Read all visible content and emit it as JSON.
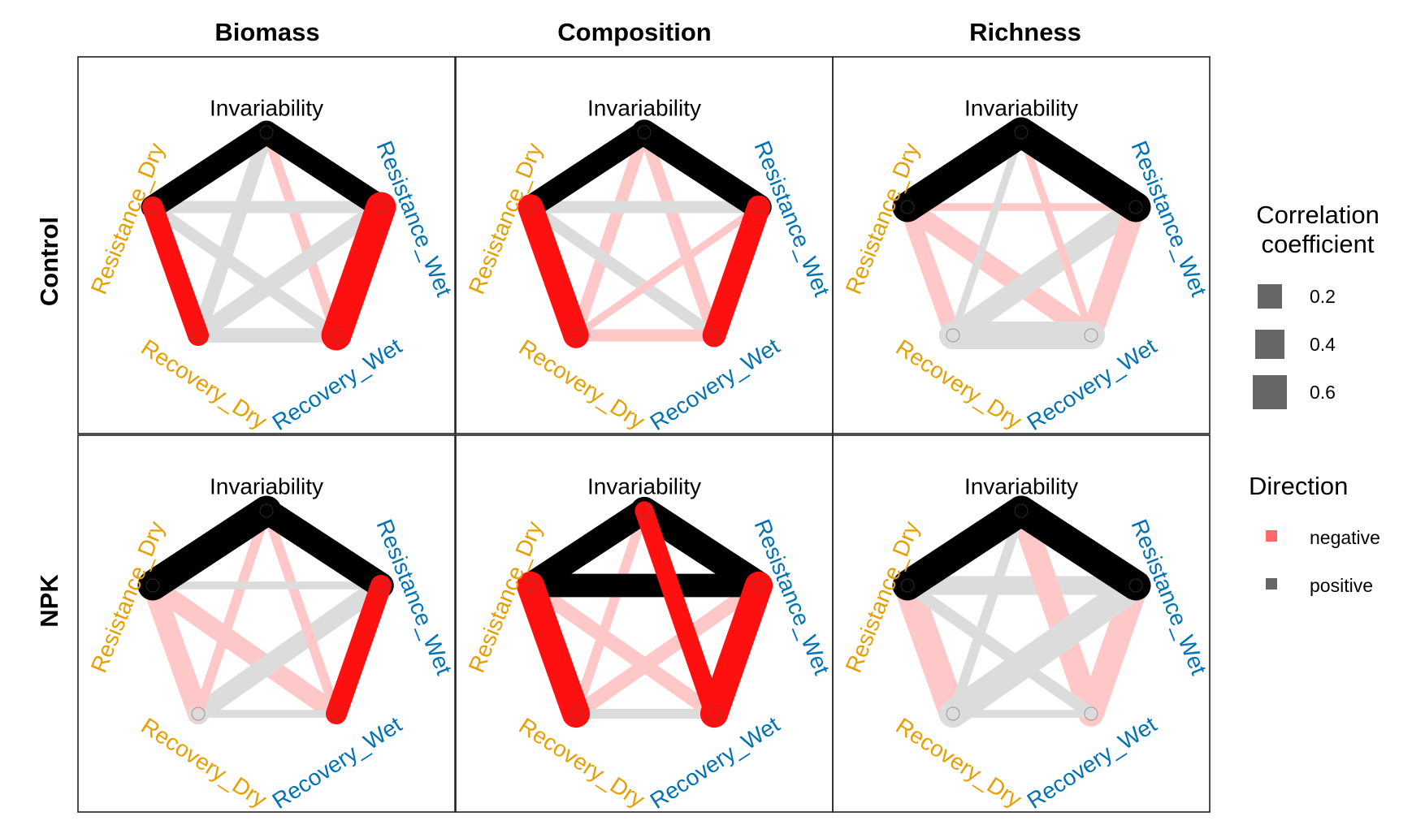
{
  "column_headers": [
    "Biomass",
    "Composition",
    "Richness"
  ],
  "row_headers": [
    "Control",
    "NPK"
  ],
  "nodes": [
    {
      "label": "Invariability",
      "color": "#000000"
    },
    {
      "label": "Resistance_Wet",
      "color": "#0072B2"
    },
    {
      "label": "Recovery_Wet",
      "color": "#0072B2"
    },
    {
      "label": "Recovery_Dry",
      "color": "#E69F00"
    },
    {
      "label": "Resistance_Dry",
      "color": "#E69F00"
    }
  ],
  "legend": {
    "size_title_line1": "Correlation",
    "size_title_line2": "coefficient",
    "size_items": [
      "0.2",
      "0.4",
      "0.6"
    ],
    "direction_title": "Direction",
    "direction_items": [
      {
        "label": "negative",
        "color": "#FF6B6B"
      },
      {
        "label": "positive",
        "color": "#666666"
      }
    ]
  },
  "colors": {
    "negative": "#FF1010",
    "positive": "#000000",
    "faint_negative": "#FFC8C8",
    "faint_positive": "#DCDCDC"
  },
  "chart_data": {
    "type": "correlation_network",
    "nodes": [
      "Invariability",
      "Resistance_Wet",
      "Recovery_Wet",
      "Recovery_Dry",
      "Resistance_Dry"
    ],
    "panels": [
      {
        "row": "Control",
        "column": "Biomass",
        "edges": [
          {
            "from": "Invariability",
            "to": "Resistance_Dry",
            "direction": "positive",
            "r": 0.45,
            "significant": true
          },
          {
            "from": "Invariability",
            "to": "Resistance_Wet",
            "direction": "positive",
            "r": 0.45,
            "significant": true
          },
          {
            "from": "Resistance_Dry",
            "to": "Recovery_Dry",
            "direction": "negative",
            "r": 0.4,
            "significant": true
          },
          {
            "from": "Resistance_Wet",
            "to": "Recovery_Wet",
            "direction": "negative",
            "r": 0.6,
            "significant": true
          },
          {
            "from": "Invariability",
            "to": "Recovery_Dry",
            "direction": "positive",
            "r": 0.25,
            "significant": false
          },
          {
            "from": "Invariability",
            "to": "Recovery_Wet",
            "direction": "negative",
            "r": 0.15,
            "significant": false
          },
          {
            "from": "Resistance_Dry",
            "to": "Resistance_Wet",
            "direction": "positive",
            "r": 0.2,
            "significant": false
          },
          {
            "from": "Resistance_Dry",
            "to": "Recovery_Wet",
            "direction": "positive",
            "r": 0.2,
            "significant": false
          },
          {
            "from": "Resistance_Wet",
            "to": "Recovery_Dry",
            "direction": "positive",
            "r": 0.3,
            "significant": false
          },
          {
            "from": "Recovery_Dry",
            "to": "Recovery_Wet",
            "direction": "positive",
            "r": 0.25,
            "significant": false
          }
        ]
      },
      {
        "row": "Control",
        "column": "Composition",
        "edges": [
          {
            "from": "Invariability",
            "to": "Resistance_Dry",
            "direction": "positive",
            "r": 0.45,
            "significant": true
          },
          {
            "from": "Invariability",
            "to": "Resistance_Wet",
            "direction": "positive",
            "r": 0.5,
            "significant": true
          },
          {
            "from": "Resistance_Dry",
            "to": "Recovery_Dry",
            "direction": "negative",
            "r": 0.5,
            "significant": true
          },
          {
            "from": "Resistance_Wet",
            "to": "Recovery_Wet",
            "direction": "negative",
            "r": 0.45,
            "significant": true
          },
          {
            "from": "Invariability",
            "to": "Recovery_Dry",
            "direction": "negative",
            "r": 0.2,
            "significant": false
          },
          {
            "from": "Invariability",
            "to": "Recovery_Wet",
            "direction": "negative",
            "r": 0.2,
            "significant": false
          },
          {
            "from": "Resistance_Dry",
            "to": "Resistance_Wet",
            "direction": "positive",
            "r": 0.2,
            "significant": false
          },
          {
            "from": "Resistance_Dry",
            "to": "Recovery_Wet",
            "direction": "positive",
            "r": 0.2,
            "significant": false
          },
          {
            "from": "Resistance_Wet",
            "to": "Recovery_Dry",
            "direction": "negative",
            "r": 0.1,
            "significant": false
          },
          {
            "from": "Recovery_Dry",
            "to": "Recovery_Wet",
            "direction": "negative",
            "r": 0.2,
            "significant": false
          }
        ]
      },
      {
        "row": "Control",
        "column": "Richness",
        "edges": [
          {
            "from": "Invariability",
            "to": "Resistance_Dry",
            "direction": "positive",
            "r": 0.6,
            "significant": true
          },
          {
            "from": "Invariability",
            "to": "Resistance_Wet",
            "direction": "positive",
            "r": 0.6,
            "significant": true
          },
          {
            "from": "Resistance_Dry",
            "to": "Resistance_Wet",
            "direction": "negative",
            "r": 0.1,
            "significant": false
          },
          {
            "from": "Resistance_Dry",
            "to": "Recovery_Dry",
            "direction": "negative",
            "r": 0.3,
            "significant": false
          },
          {
            "from": "Resistance_Dry",
            "to": "Recovery_Wet",
            "direction": "negative",
            "r": 0.35,
            "significant": false
          },
          {
            "from": "Resistance_Wet",
            "to": "Recovery_Dry",
            "direction": "positive",
            "r": 0.4,
            "significant": false
          },
          {
            "from": "Resistance_Wet",
            "to": "Recovery_Wet",
            "direction": "negative",
            "r": 0.4,
            "significant": false
          },
          {
            "from": "Invariability",
            "to": "Recovery_Dry",
            "direction": "positive",
            "r": 0.1,
            "significant": false
          },
          {
            "from": "Invariability",
            "to": "Recovery_Wet",
            "direction": "negative",
            "r": 0.1,
            "significant": false
          },
          {
            "from": "Recovery_Dry",
            "to": "Recovery_Wet",
            "direction": "positive",
            "r": 0.55,
            "significant": false
          }
        ]
      },
      {
        "row": "NPK",
        "column": "Biomass",
        "edges": [
          {
            "from": "Invariability",
            "to": "Resistance_Dry",
            "direction": "positive",
            "r": 0.6,
            "significant": true
          },
          {
            "from": "Invariability",
            "to": "Resistance_Wet",
            "direction": "positive",
            "r": 0.5,
            "significant": true
          },
          {
            "from": "Resistance_Wet",
            "to": "Recovery_Wet",
            "direction": "negative",
            "r": 0.4,
            "significant": true
          },
          {
            "from": "Resistance_Dry",
            "to": "Recovery_Dry",
            "direction": "negative",
            "r": 0.4,
            "significant": false
          },
          {
            "from": "Resistance_Dry",
            "to": "Recovery_Wet",
            "direction": "negative",
            "r": 0.35,
            "significant": false
          },
          {
            "from": "Resistance_Wet",
            "to": "Recovery_Dry",
            "direction": "positive",
            "r": 0.35,
            "significant": false
          },
          {
            "from": "Invariability",
            "to": "Recovery_Dry",
            "direction": "negative",
            "r": 0.15,
            "significant": false
          },
          {
            "from": "Invariability",
            "to": "Recovery_Wet",
            "direction": "negative",
            "r": 0.15,
            "significant": false
          },
          {
            "from": "Resistance_Dry",
            "to": "Resistance_Wet",
            "direction": "positive",
            "r": 0.1,
            "significant": false
          },
          {
            "from": "Recovery_Dry",
            "to": "Recovery_Wet",
            "direction": "positive",
            "r": 0.1,
            "significant": false
          }
        ]
      },
      {
        "row": "NPK",
        "column": "Composition",
        "edges": [
          {
            "from": "Invariability",
            "to": "Resistance_Dry",
            "direction": "positive",
            "r": 0.5,
            "significant": true
          },
          {
            "from": "Invariability",
            "to": "Resistance_Wet",
            "direction": "positive",
            "r": 0.55,
            "significant": true
          },
          {
            "from": "Resistance_Dry",
            "to": "Resistance_Wet",
            "direction": "positive",
            "r": 0.45,
            "significant": true
          },
          {
            "from": "Resistance_Dry",
            "to": "Recovery_Dry",
            "direction": "negative",
            "r": 0.55,
            "significant": true
          },
          {
            "from": "Resistance_Wet",
            "to": "Recovery_Wet",
            "direction": "negative",
            "r": 0.55,
            "significant": true
          },
          {
            "from": "Invariability",
            "to": "Recovery_Wet",
            "direction": "negative",
            "r": 0.35,
            "significant": true
          },
          {
            "from": "Invariability",
            "to": "Recovery_Dry",
            "direction": "negative",
            "r": 0.15,
            "significant": false
          },
          {
            "from": "Resistance_Dry",
            "to": "Recovery_Wet",
            "direction": "negative",
            "r": 0.25,
            "significant": false
          },
          {
            "from": "Resistance_Wet",
            "to": "Recovery_Dry",
            "direction": "negative",
            "r": 0.25,
            "significant": false
          },
          {
            "from": "Recovery_Dry",
            "to": "Recovery_Wet",
            "direction": "positive",
            "r": 0.15,
            "significant": false
          }
        ]
      },
      {
        "row": "NPK",
        "column": "Richness",
        "edges": [
          {
            "from": "Invariability",
            "to": "Resistance_Dry",
            "direction": "positive",
            "r": 0.6,
            "significant": true
          },
          {
            "from": "Invariability",
            "to": "Resistance_Wet",
            "direction": "positive",
            "r": 0.6,
            "significant": true
          },
          {
            "from": "Resistance_Dry",
            "to": "Resistance_Wet",
            "direction": "positive",
            "r": 0.35,
            "significant": false
          },
          {
            "from": "Resistance_Dry",
            "to": "Recovery_Dry",
            "direction": "negative",
            "r": 0.55,
            "significant": false
          },
          {
            "from": "Resistance_Wet",
            "to": "Recovery_Wet",
            "direction": "negative",
            "r": 0.5,
            "significant": false
          },
          {
            "from": "Invariability",
            "to": "Recovery_Wet",
            "direction": "negative",
            "r": 0.45,
            "significant": false
          },
          {
            "from": "Resistance_Wet",
            "to": "Recovery_Dry",
            "direction": "positive",
            "r": 0.55,
            "significant": false
          },
          {
            "from": "Resistance_Dry",
            "to": "Recovery_Wet",
            "direction": "positive",
            "r": 0.2,
            "significant": false
          },
          {
            "from": "Invariability",
            "to": "Recovery_Dry",
            "direction": "positive",
            "r": 0.15,
            "significant": false
          },
          {
            "from": "Recovery_Dry",
            "to": "Recovery_Wet",
            "direction": "positive",
            "r": 0.1,
            "significant": false
          }
        ]
      }
    ]
  }
}
